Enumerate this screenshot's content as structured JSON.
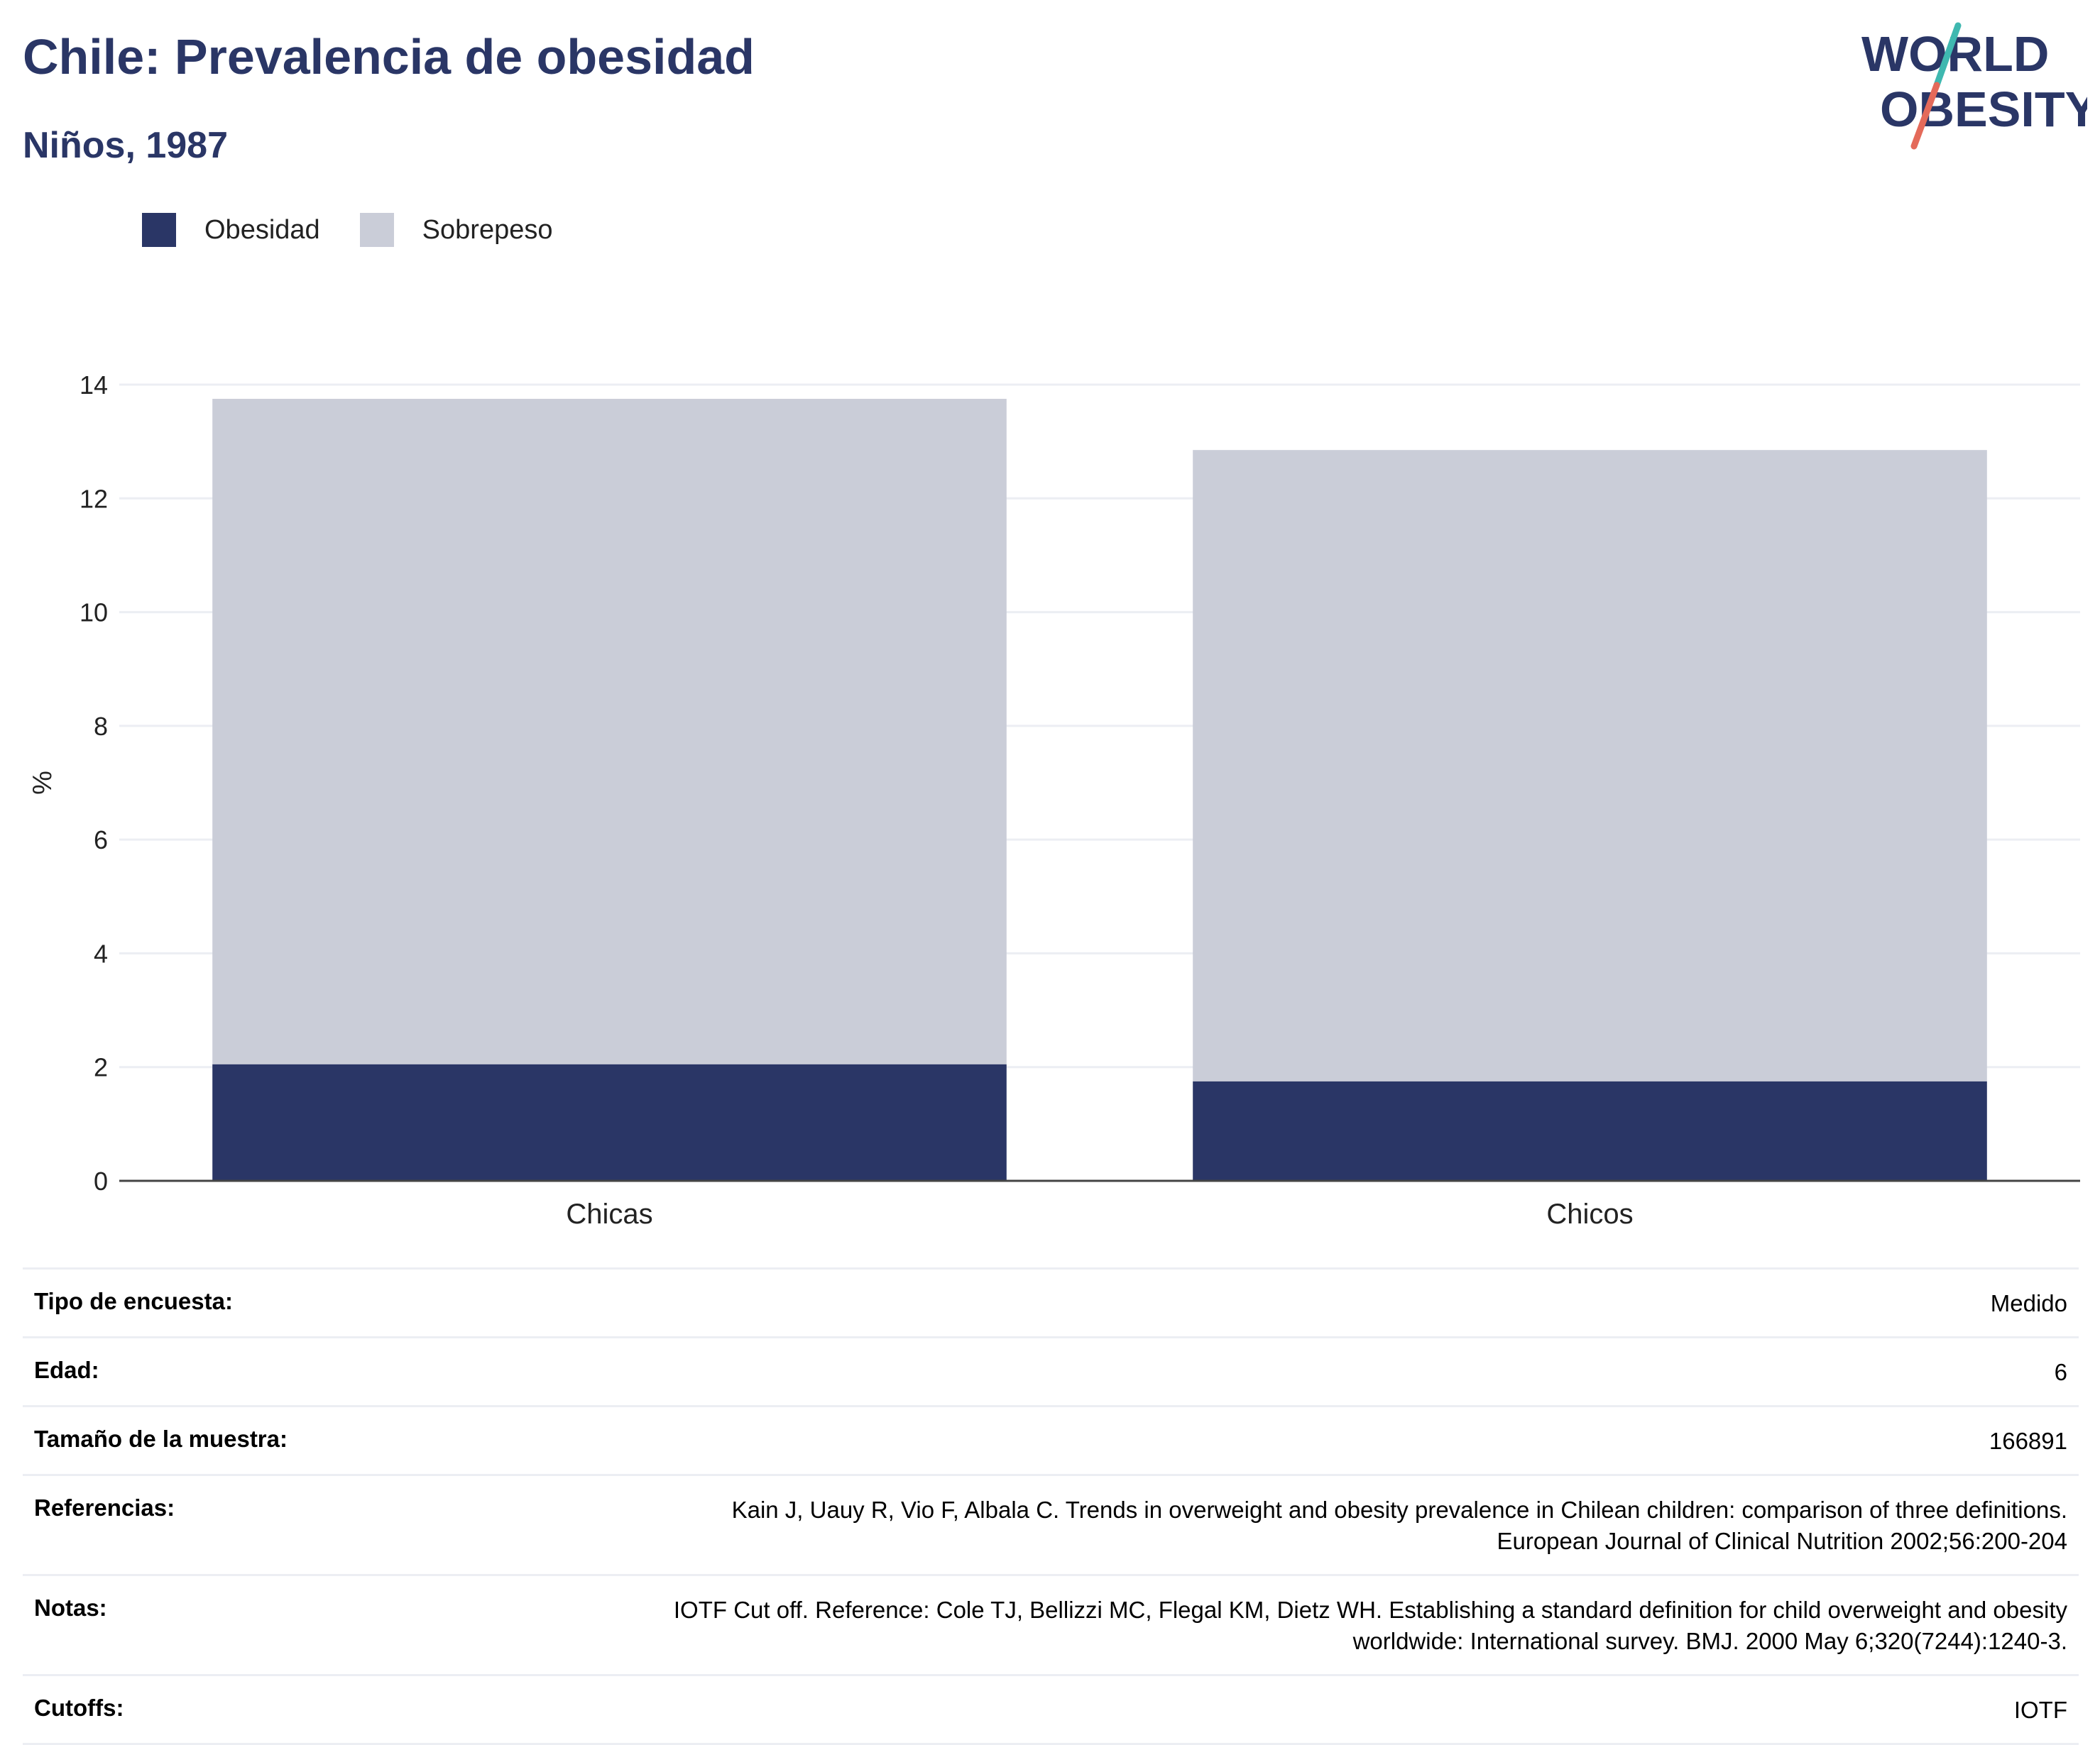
{
  "header": {
    "title": "Chile: Prevalencia de obesidad",
    "subtitle": "Niños, 1987"
  },
  "logo": {
    "line1": "WORLD",
    "line2": "OBESITY"
  },
  "colors": {
    "obesidad": "#2a3666",
    "sobrepeso": "#cacdd8",
    "title": "#2a3666"
  },
  "chart_data": {
    "type": "bar",
    "stacked": true,
    "categories": [
      "Chicas",
      "Chicos"
    ],
    "series": [
      {
        "name": "Obesidad",
        "values": [
          2.05,
          1.75
        ]
      },
      {
        "name": "Sobrepeso",
        "values": [
          11.7,
          11.1
        ]
      }
    ],
    "ylabel": "%",
    "ylim": [
      0,
      14
    ],
    "yticks": [
      0,
      2,
      4,
      6,
      8,
      10,
      12,
      14
    ],
    "grid": true,
    "legend": "top-left"
  },
  "info_table": [
    {
      "label": "Tipo de encuesta:",
      "value": [
        "Medido"
      ]
    },
    {
      "label": "Edad:",
      "value": [
        "6"
      ]
    },
    {
      "label": "Tamaño de la muestra:",
      "value": [
        "166891"
      ]
    },
    {
      "label": "Referencias:",
      "value": [
        "Kain J, Uauy R, Vio F, Albala C. Trends in overweight and obesity prevalence in Chilean children: comparison of three definitions.",
        "European Journal of Clinical Nutrition 2002;56:200-204"
      ]
    },
    {
      "label": "Notas:",
      "value": [
        "IOTF Cut off. Reference: Cole TJ, Bellizzi MC, Flegal KM, Dietz WH. Establishing a standard definition for child overweight and obesity",
        "worldwide: International survey. BMJ. 2000 May 6;320(7244):1240-3."
      ]
    },
    {
      "label": "Cutoffs:",
      "value": [
        "IOTF"
      ]
    }
  ]
}
